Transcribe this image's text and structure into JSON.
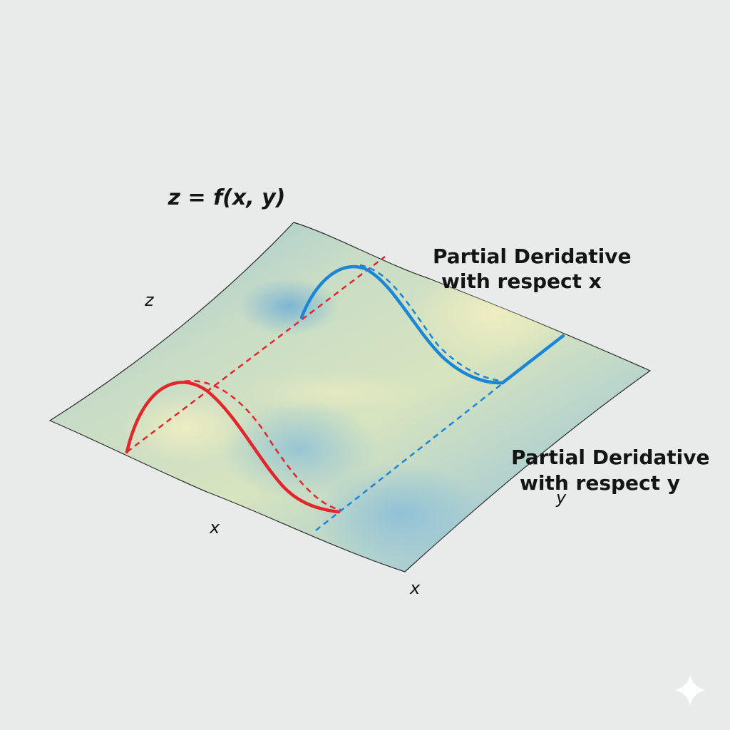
{
  "title": "z = f(x, y)",
  "labels": {
    "partial_x_line1": "Partial Deridative",
    "partial_x_line2": "with respect x",
    "partial_y_line1": "Partial Deridative",
    "partial_y_line2": "with respect y"
  },
  "axes": {
    "z": "z",
    "x_left": "x",
    "x_bottom": "x",
    "y": "y"
  },
  "colors": {
    "background": "#e9ebeb",
    "partial_x_curve": "#e3262b",
    "partial_y_curve": "#1c86d6",
    "surface_yellow": "#dfe7b9",
    "surface_blue": "#8fc2d8"
  },
  "icons": {
    "corner": "sparkle-icon"
  }
}
